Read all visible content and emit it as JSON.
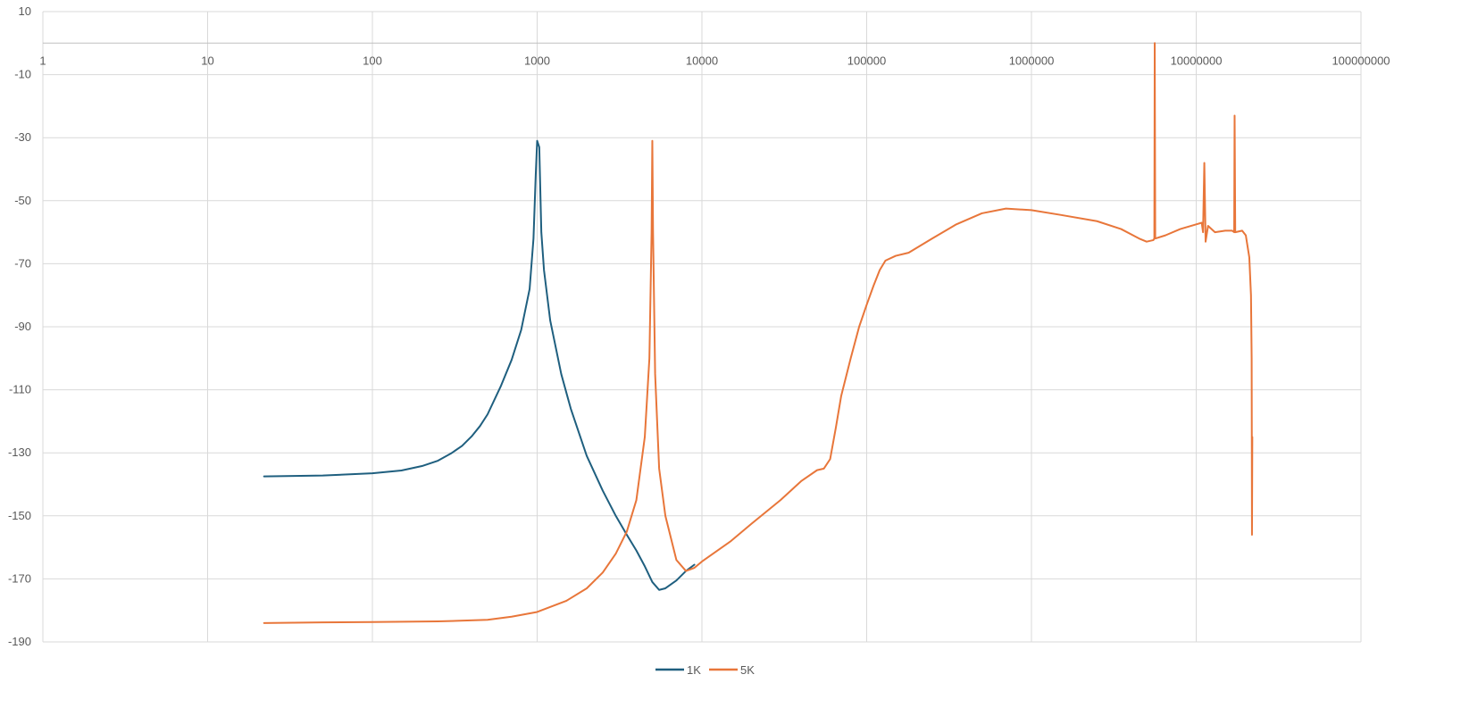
{
  "chart_data": {
    "type": "line",
    "title": "",
    "xlabel": "",
    "ylabel": "",
    "x_scale": "log",
    "x_range": [
      1,
      100000000
    ],
    "y_range": [
      -190,
      10
    ],
    "x_tick_labels": [
      "1",
      "10",
      "100",
      "1000",
      "10000",
      "100000",
      "1000000",
      "10000000",
      "100000000"
    ],
    "y_tick_labels": [
      "10",
      "-10",
      "-30",
      "-50",
      "-70",
      "-90",
      "-110",
      "-130",
      "-150",
      "-170",
      "-190"
    ],
    "y_ticks": [
      10,
      -10,
      -30,
      -50,
      -70,
      -90,
      -110,
      -130,
      -150,
      -170,
      -190
    ],
    "x_axis_crosses_at": 0,
    "grid": true,
    "legend": "bottom",
    "series": [
      {
        "name": "1K",
        "color": "#1f5f7f",
        "points": [
          [
            22,
            -137.5
          ],
          [
            50,
            -137.2
          ],
          [
            100,
            -136.5
          ],
          [
            150,
            -135.6
          ],
          [
            200,
            -134.2
          ],
          [
            250,
            -132.5
          ],
          [
            300,
            -130.2
          ],
          [
            350,
            -127.8
          ],
          [
            400,
            -124.8
          ],
          [
            450,
            -121.5
          ],
          [
            500,
            -117.8
          ],
          [
            600,
            -109
          ],
          [
            700,
            -100.5
          ],
          [
            800,
            -91
          ],
          [
            900,
            -78
          ],
          [
            950,
            -62
          ],
          [
            980,
            -42
          ],
          [
            1000,
            -31
          ],
          [
            1030,
            -33
          ],
          [
            1060,
            -60
          ],
          [
            1100,
            -72
          ],
          [
            1200,
            -88
          ],
          [
            1400,
            -105
          ],
          [
            1600,
            -116
          ],
          [
            2000,
            -131
          ],
          [
            2500,
            -142
          ],
          [
            3000,
            -150
          ],
          [
            3500,
            -156
          ],
          [
            4000,
            -161
          ],
          [
            4500,
            -166
          ],
          [
            5000,
            -171
          ],
          [
            5500,
            -173.5
          ],
          [
            6000,
            -173
          ],
          [
            7000,
            -170.5
          ],
          [
            8000,
            -167.5
          ],
          [
            9000,
            -165.5
          ]
        ]
      },
      {
        "name": "5K",
        "color": "#e8763a",
        "points": [
          [
            22,
            -184
          ],
          [
            50,
            -183.8
          ],
          [
            100,
            -183.7
          ],
          [
            250,
            -183.5
          ],
          [
            500,
            -183
          ],
          [
            700,
            -182
          ],
          [
            1000,
            -180.5
          ],
          [
            1500,
            -177
          ],
          [
            2000,
            -173
          ],
          [
            2500,
            -168
          ],
          [
            3000,
            -162
          ],
          [
            3500,
            -155
          ],
          [
            4000,
            -145
          ],
          [
            4500,
            -125
          ],
          [
            4800,
            -100
          ],
          [
            4950,
            -60
          ],
          [
            5000,
            -31
          ],
          [
            5050,
            -60
          ],
          [
            5200,
            -105
          ],
          [
            5500,
            -135
          ],
          [
            6000,
            -150
          ],
          [
            7000,
            -164
          ],
          [
            8000,
            -167.5
          ],
          [
            9000,
            -166.5
          ],
          [
            10000,
            -164.5
          ],
          [
            15000,
            -158
          ],
          [
            20000,
            -152.5
          ],
          [
            30000,
            -145
          ],
          [
            40000,
            -139
          ],
          [
            50000,
            -135.5
          ],
          [
            55000,
            -135
          ],
          [
            60000,
            -132
          ],
          [
            65000,
            -122
          ],
          [
            70000,
            -112
          ],
          [
            80000,
            -100
          ],
          [
            90000,
            -90
          ],
          [
            100000,
            -83
          ],
          [
            110000,
            -77
          ],
          [
            120000,
            -72
          ],
          [
            130000,
            -69
          ],
          [
            150000,
            -67.5
          ],
          [
            180000,
            -66.5
          ],
          [
            250000,
            -62
          ],
          [
            350000,
            -57.5
          ],
          [
            500000,
            -54
          ],
          [
            700000,
            -52.5
          ],
          [
            1000000,
            -53
          ],
          [
            1500000,
            -54.5
          ],
          [
            2500000,
            -56.5
          ],
          [
            3500000,
            -59
          ],
          [
            4500000,
            -62
          ],
          [
            5000000,
            -63
          ],
          [
            5500000,
            -62.5
          ],
          [
            5570000,
            -62
          ],
          [
            5600000,
            0
          ],
          [
            5640000,
            -62
          ],
          [
            6500000,
            -61
          ],
          [
            8000000,
            -59
          ],
          [
            10000000,
            -57.5
          ],
          [
            10800000,
            -57
          ],
          [
            11000000,
            -60
          ],
          [
            11200000,
            -38
          ],
          [
            11400000,
            -63
          ],
          [
            11800000,
            -58
          ],
          [
            13000000,
            -60
          ],
          [
            15000000,
            -59.5
          ],
          [
            16500000,
            -59.5
          ],
          [
            17000000,
            -60
          ],
          [
            17100000,
            -23
          ],
          [
            17250000,
            -60
          ],
          [
            19000000,
            -59.5
          ],
          [
            20000000,
            -61
          ],
          [
            21000000,
            -68
          ],
          [
            21500000,
            -80
          ],
          [
            21700000,
            -100
          ],
          [
            21800000,
            -156
          ],
          [
            21900000,
            -125
          ]
        ]
      }
    ]
  }
}
